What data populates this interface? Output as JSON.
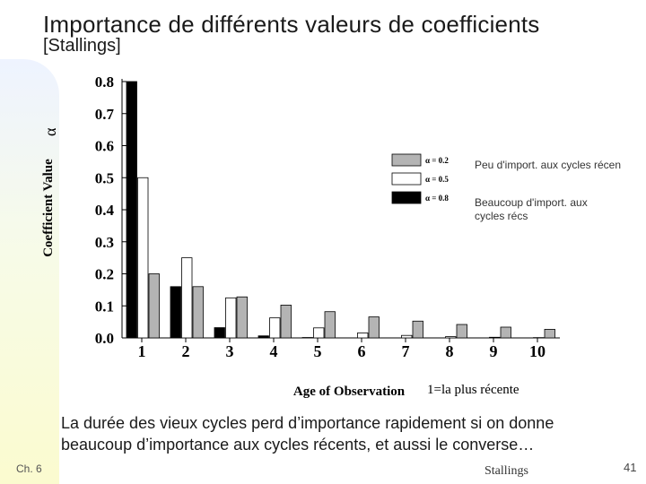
{
  "slide": {
    "title": "Importance de différents valeurs de coefficients",
    "subtitle": "[Stallings]",
    "alpha_label": "α",
    "body": "La durée des vieux cycles perd d’importance rapidement si on donne beaucoup d’importance aux cycles récents, et aussi le converse…",
    "chapter": "Ch. 6",
    "source": "Stallings",
    "page_number": "41"
  },
  "annotations": {
    "low_alpha": "Peu d'import. aux cycles récen",
    "high_alpha": "Beaucoup d'import. aux cycles récs"
  },
  "chart_data": {
    "type": "bar",
    "title": "",
    "xlabel": "Age of Observation",
    "xlabel_note": "1=la plus récente",
    "ylabel": "Coefficient Value",
    "ylim": [
      0,
      0.8
    ],
    "yticks": [
      "0.0",
      "0.1",
      "0.2",
      "0.3",
      "0.4",
      "0.5",
      "0.6",
      "0.7",
      "0.8"
    ],
    "categories": [
      "1",
      "2",
      "3",
      "4",
      "5",
      "6",
      "7",
      "8",
      "9",
      "10"
    ],
    "series": [
      {
        "name": "α = 0.8",
        "color": "#000000",
        "values": [
          0.8,
          0.16,
          0.032,
          0.0064,
          0.0013,
          0.0003,
          0.0001,
          0.0,
          0.0,
          0.0
        ]
      },
      {
        "name": "α = 0.5",
        "color": "#ffffff",
        "values": [
          0.5,
          0.25,
          0.125,
          0.0625,
          0.0313,
          0.0156,
          0.0078,
          0.0039,
          0.002,
          0.001
        ]
      },
      {
        "name": "α = 0.2",
        "color": "#b4b4b4",
        "values": [
          0.2,
          0.16,
          0.128,
          0.1024,
          0.0819,
          0.0655,
          0.0524,
          0.0419,
          0.0336,
          0.0268
        ]
      }
    ],
    "legend": [
      {
        "label": "α = 0.2",
        "color": "#b4b4b4"
      },
      {
        "label": "α = 0.5",
        "color": "#ffffff"
      },
      {
        "label": "α = 0.8",
        "color": "#000000"
      }
    ]
  }
}
